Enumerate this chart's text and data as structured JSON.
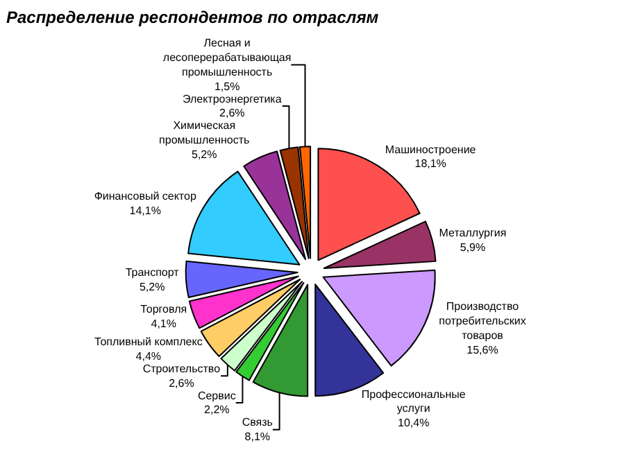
{
  "chart_data": {
    "type": "pie",
    "title": "Распределение респондентов по отраслям",
    "categories": [
      "Машиностроение",
      "Металлургия",
      "Производство потребительских товаров",
      "Профессиональные услуги",
      "Связь",
      "Сервис",
      "Строительство",
      "Топливный комплекс",
      "Торговля",
      "Транспорт",
      "Финансовый сектор",
      "Химическая промышленность",
      "Электроэнергетика",
      "Лесная и лесоперерабатывающая промышленность"
    ],
    "values": [
      18.1,
      5.9,
      15.6,
      10.4,
      8.1,
      2.2,
      2.6,
      4.4,
      4.1,
      5.2,
      14.1,
      5.2,
      2.6,
      1.5
    ],
    "value_labels": [
      "18,1%",
      "5,9%",
      "15,6%",
      "10,4%",
      "8,1%",
      "2,2%",
      "2,6%",
      "4,4%",
      "4,1%",
      "5,2%",
      "14,1%",
      "5,2%",
      "2,6%",
      "1,5%"
    ],
    "colors": [
      "#ff5050",
      "#993366",
      "#cc99ff",
      "#333399",
      "#339933",
      "#33cc33",
      "#ccffcc",
      "#ffcc66",
      "#ff33cc",
      "#6666ff",
      "#33ccff",
      "#993399",
      "#993300",
      "#ff6600"
    ],
    "legend": false
  }
}
